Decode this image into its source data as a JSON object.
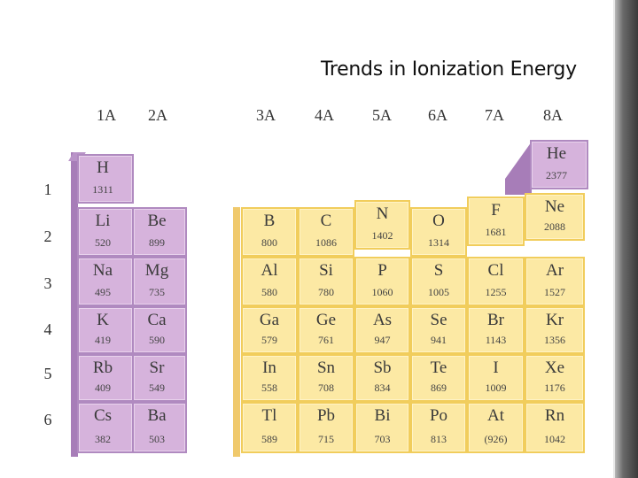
{
  "title": "Trends in Ionization Energy",
  "group_labels": [
    "1A",
    "2A",
    "3A",
    "4A",
    "5A",
    "6A",
    "7A",
    "8A"
  ],
  "period_labels": [
    "1",
    "2",
    "3",
    "4",
    "5",
    "6"
  ],
  "colors": {
    "s_block": "#d6b3dc",
    "p_block": "#fce9a4",
    "s_border": "#b08ac0",
    "p_border": "#f1cd5c"
  },
  "elements": [
    {
      "symbol": "H",
      "ie": "1311",
      "group": 0,
      "period": 0
    },
    {
      "symbol": "He",
      "ie": "2377",
      "group": 7,
      "period": 0
    },
    {
      "symbol": "Li",
      "ie": "520",
      "group": 0,
      "period": 1
    },
    {
      "symbol": "Be",
      "ie": "899",
      "group": 1,
      "period": 1
    },
    {
      "symbol": "B",
      "ie": "800",
      "group": 2,
      "period": 1
    },
    {
      "symbol": "C",
      "ie": "1086",
      "group": 3,
      "period": 1
    },
    {
      "symbol": "N",
      "ie": "1402",
      "group": 4,
      "period": 1
    },
    {
      "symbol": "O",
      "ie": "1314",
      "group": 5,
      "period": 1
    },
    {
      "symbol": "F",
      "ie": "1681",
      "group": 6,
      "period": 1
    },
    {
      "symbol": "Ne",
      "ie": "2088",
      "group": 7,
      "period": 1
    },
    {
      "symbol": "Na",
      "ie": "495",
      "group": 0,
      "period": 2
    },
    {
      "symbol": "Mg",
      "ie": "735",
      "group": 1,
      "period": 2
    },
    {
      "symbol": "Al",
      "ie": "580",
      "group": 2,
      "period": 2
    },
    {
      "symbol": "Si",
      "ie": "780",
      "group": 3,
      "period": 2
    },
    {
      "symbol": "P",
      "ie": "1060",
      "group": 4,
      "period": 2
    },
    {
      "symbol": "S",
      "ie": "1005",
      "group": 5,
      "period": 2
    },
    {
      "symbol": "Cl",
      "ie": "1255",
      "group": 6,
      "period": 2
    },
    {
      "symbol": "Ar",
      "ie": "1527",
      "group": 7,
      "period": 2
    },
    {
      "symbol": "K",
      "ie": "419",
      "group": 0,
      "period": 3
    },
    {
      "symbol": "Ca",
      "ie": "590",
      "group": 1,
      "period": 3
    },
    {
      "symbol": "Ga",
      "ie": "579",
      "group": 2,
      "period": 3
    },
    {
      "symbol": "Ge",
      "ie": "761",
      "group": 3,
      "period": 3
    },
    {
      "symbol": "As",
      "ie": "947",
      "group": 4,
      "period": 3
    },
    {
      "symbol": "Se",
      "ie": "941",
      "group": 5,
      "period": 3
    },
    {
      "symbol": "Br",
      "ie": "1143",
      "group": 6,
      "period": 3
    },
    {
      "symbol": "Kr",
      "ie": "1356",
      "group": 7,
      "period": 3
    },
    {
      "symbol": "Rb",
      "ie": "409",
      "group": 0,
      "period": 4
    },
    {
      "symbol": "Sr",
      "ie": "549",
      "group": 1,
      "period": 4
    },
    {
      "symbol": "In",
      "ie": "558",
      "group": 2,
      "period": 4
    },
    {
      "symbol": "Sn",
      "ie": "708",
      "group": 3,
      "period": 4
    },
    {
      "symbol": "Sb",
      "ie": "834",
      "group": 4,
      "period": 4
    },
    {
      "symbol": "Te",
      "ie": "869",
      "group": 5,
      "period": 4
    },
    {
      "symbol": "I",
      "ie": "1009",
      "group": 6,
      "period": 4
    },
    {
      "symbol": "Xe",
      "ie": "1176",
      "group": 7,
      "period": 4
    },
    {
      "symbol": "Cs",
      "ie": "382",
      "group": 0,
      "period": 5
    },
    {
      "symbol": "Ba",
      "ie": "503",
      "group": 1,
      "period": 5
    },
    {
      "symbol": "Tl",
      "ie": "589",
      "group": 2,
      "period": 5
    },
    {
      "symbol": "Pb",
      "ie": "715",
      "group": 3,
      "period": 5
    },
    {
      "symbol": "Bi",
      "ie": "703",
      "group": 4,
      "period": 5
    },
    {
      "symbol": "Po",
      "ie": "813",
      "group": 5,
      "period": 5
    },
    {
      "symbol": "At",
      "ie": "(926)",
      "group": 6,
      "period": 5
    },
    {
      "symbol": "Rn",
      "ie": "1042",
      "group": 7,
      "period": 5
    }
  ]
}
